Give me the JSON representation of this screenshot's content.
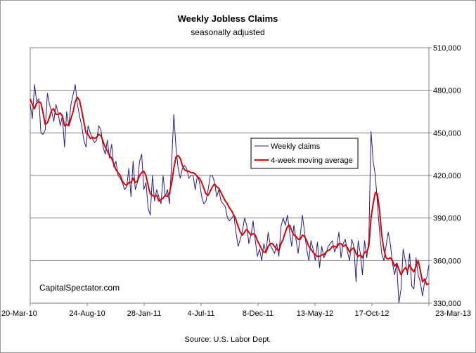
{
  "chart_data": {
    "type": "line",
    "title": "Weekly Jobless Claims",
    "subtitle": "seasonally adjusted",
    "source": "Source: U.S. Labor Dept.",
    "watermark": "CapitalSpectator.com",
    "x_tick_labels": [
      "20-Mar-10",
      "24-Aug-10",
      "28-Jan-11",
      "4-Jul-11",
      "8-Dec-11",
      "13-May-12",
      "17-Oct-12",
      "23-Mar-13"
    ],
    "y_tick_labels": [
      "330,000",
      "360,000",
      "390,000",
      "420,000",
      "450,000",
      "480,000",
      "510,000"
    ],
    "ylim": [
      330000,
      510000
    ],
    "grid": true,
    "legend_position": "center-right",
    "x_start": "20-Mar-10",
    "x_end": "23-Mar-13",
    "series": [
      {
        "name": "Weekly claims",
        "color": "#1f1f8f",
        "values": [
          470000,
          460000,
          484000,
          472000,
          474000,
          450000,
          449000,
          452000,
          478000,
          470000,
          465000,
          458000,
          470000,
          464000,
          455000,
          462000,
          440000,
          465000,
          455000,
          470000,
          477000,
          484000,
          470000,
          462000,
          455000,
          445000,
          440000,
          455000,
          450000,
          446000,
          443000,
          445000,
          455000,
          452000,
          440000,
          435000,
          445000,
          432000,
          442000,
          426000,
          430000,
          420000,
          418000,
          415000,
          410000,
          412000,
          425000,
          405000,
          430000,
          410000,
          415000,
          430000,
          435000,
          410000,
          415000,
          397000,
          392000,
          420000,
          402000,
          410000,
          405000,
          400000,
          420000,
          405000,
          410000,
          400000,
          430000,
          463000,
          440000,
          425000,
          418000,
          425000,
          427000,
          425000,
          418000,
          420000,
          420000,
          410000,
          420000,
          415000,
          405000,
          400000,
          402000,
          410000,
          420000,
          420000,
          415000,
          405000,
          410000,
          402000,
          400000,
          398000,
          390000,
          388000,
          390000,
          392000,
          380000,
          370000,
          375000,
          381000,
          390000,
          385000,
          372000,
          378000,
          388000,
          374000,
          363000,
          368000,
          360000,
          372000,
          365000,
          380000,
          371000,
          368000,
          365000,
          372000,
          363000,
          384000,
          390000,
          385000,
          392000,
          380000,
          370000,
          385000,
          375000,
          365000,
          378000,
          392000,
          380000,
          368000,
          360000,
          374000,
          368000,
          360000,
          373000,
          355000,
          370000,
          362000,
          365000,
          370000,
          372000,
          374000,
          366000,
          370000,
          380000,
          362000,
          372000,
          375000,
          366000,
          360000,
          375000,
          370000,
          345000,
          374000,
          365000,
          350000,
          374000,
          362000,
          375000,
          451000,
          430000,
          420000,
          400000,
          380000,
          365000,
          360000,
          370000,
          380000,
          372000,
          358000,
          350000,
          358000,
          330000,
          340000,
          368000,
          360000,
          350000,
          365000,
          342000,
          340000,
          362000,
          350000,
          345000,
          335000,
          345000,
          348000,
          357000
        ]
      },
      {
        "name": "4-week moving average",
        "color": "#e00000",
        "values": [
          474000,
          470000,
          467000,
          471000,
          472000,
          471000,
          464000,
          456000,
          457000,
          461000,
          466000,
          467000,
          463000,
          463000,
          464000,
          462000,
          455000,
          456000,
          455000,
          460000,
          465000,
          472000,
          475000,
          473000,
          466000,
          458000,
          450000,
          449000,
          446000,
          447000,
          446000,
          447000,
          449000,
          448000,
          444000,
          440000,
          437000,
          434000,
          432000,
          428000,
          424000,
          422000,
          420000,
          416000,
          414000,
          413000,
          415000,
          415000,
          418000,
          415000,
          416000,
          420000,
          422000,
          423000,
          420000,
          413000,
          407000,
          406000,
          405000,
          406000,
          402000,
          403000,
          404000,
          406000,
          405000,
          408000,
          415000,
          425000,
          433000,
          434000,
          432000,
          427000,
          424000,
          423000,
          423000,
          422000,
          422000,
          421000,
          419000,
          418000,
          415000,
          411000,
          407000,
          406000,
          409000,
          412000,
          414000,
          412000,
          411000,
          408000,
          405000,
          402000,
          400000,
          397000,
          395000,
          392000,
          389000,
          384000,
          380000,
          378000,
          380000,
          382000,
          380000,
          378000,
          379000,
          378000,
          374000,
          371000,
          368000,
          366000,
          366000,
          370000,
          372000,
          372000,
          370000,
          368000,
          367000,
          372000,
          375000,
          380000,
          384000,
          385000,
          381000,
          378000,
          377000,
          375000,
          375000,
          378000,
          377000,
          374000,
          370000,
          368000,
          366000,
          364000,
          363000,
          363000,
          364000,
          364000,
          366000,
          367000,
          368000,
          370000,
          370000,
          369000,
          372000,
          372000,
          370000,
          371000,
          369000,
          366000,
          368000,
          369000,
          365000,
          363000,
          364000,
          362000,
          366000,
          366000,
          370000,
          390000,
          400000,
          408000,
          407000,
          395000,
          378000,
          368000,
          362000,
          361000,
          362000,
          360000,
          356000,
          358000,
          354000,
          350000,
          353000,
          355000,
          353000,
          357000,
          354000,
          352000,
          356000,
          360000,
          353000,
          345000,
          347000,
          343000,
          344000
        ]
      }
    ]
  }
}
